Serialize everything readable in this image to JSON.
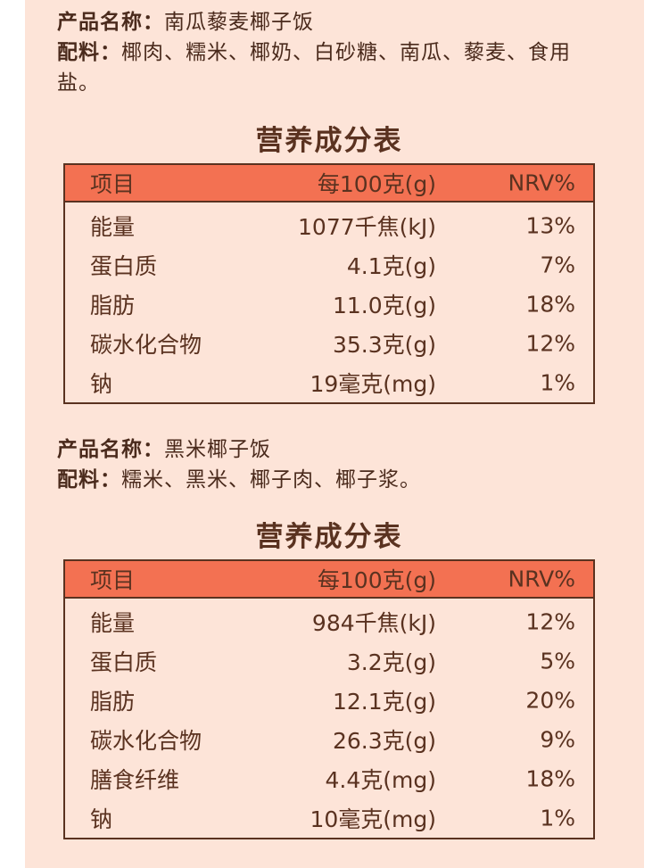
{
  "products": [
    {
      "name_label": "产品名称：",
      "name": "南瓜藜麦椰子饭",
      "ingredients_label": "配料：",
      "ingredients_line1": "椰肉、糯米、椰奶、白砂糖、南瓜、藜麦、食用",
      "ingredients_line2": "盐。",
      "table_title": "营养成分表",
      "headers": [
        "项目",
        "每100克(g)",
        "NRV%"
      ],
      "rows": [
        {
          "item": "能量",
          "amount": "1077千焦(kJ)",
          "nrv": "13%"
        },
        {
          "item": "蛋白质",
          "amount": "4.1克(g)",
          "nrv": "7%"
        },
        {
          "item": "脂肪",
          "amount": "11.0克(g)",
          "nrv": "18%"
        },
        {
          "item": "碳水化合物",
          "amount": "35.3克(g)",
          "nrv": "12%"
        },
        {
          "item": "钠",
          "amount": "19毫克(mg)",
          "nrv": "1%"
        }
      ]
    },
    {
      "name_label": "产品名称：",
      "name": "黑米椰子饭",
      "ingredients_label": "配料：",
      "ingredients_line1": "糯米、黑米、椰子肉、椰子浆。",
      "table_title": "营养成分表",
      "headers": [
        "项目",
        "每100克(g)",
        "NRV%"
      ],
      "rows": [
        {
          "item": "能量",
          "amount": "984千焦(kJ)",
          "nrv": "12%"
        },
        {
          "item": "蛋白质",
          "amount": "3.2克(g)",
          "nrv": "5%"
        },
        {
          "item": "脂肪",
          "amount": "12.1克(g)",
          "nrv": "20%"
        },
        {
          "item": "碳水化合物",
          "amount": "26.3克(g)",
          "nrv": "9%"
        },
        {
          "item": "膳食纤维",
          "amount": "4.4克(mg)",
          "nrv": "18%"
        },
        {
          "item": "钠",
          "amount": "10毫克(mg)",
          "nrv": "1%"
        }
      ]
    }
  ],
  "colors": {
    "background": "#fde4d8",
    "header": "#f37152",
    "text": "#5a3220"
  }
}
